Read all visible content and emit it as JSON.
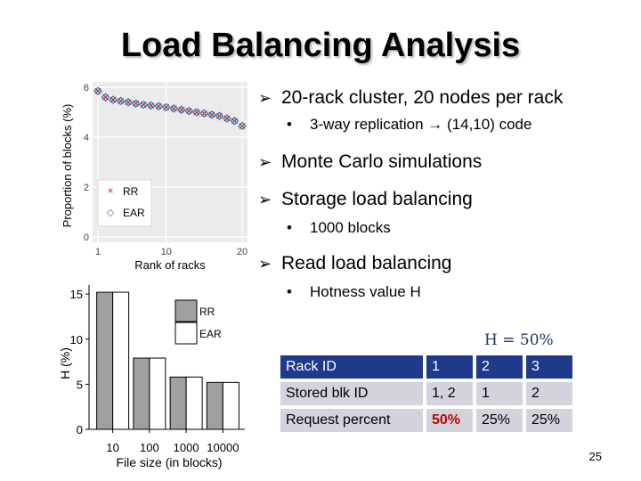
{
  "slide": {
    "title": "Load Balancing Analysis",
    "page_number": "25"
  },
  "bullets": {
    "b1": "20-rack cluster, 20 nodes per rack",
    "b1_sub": "3-way replication → (14,10) code",
    "b2": "Monte Carlo simulations",
    "b3": "Storage load balancing",
    "b3_sub": "1000 blocks",
    "b4": "Read load balancing",
    "b4_sub": "Hotness value H"
  },
  "hotness": {
    "label": "H = 50%"
  },
  "rack_table": {
    "rows": [
      {
        "label": "Rack ID",
        "values": [
          "1",
          "2",
          "3"
        ]
      },
      {
        "label": "Stored blk ID",
        "values": [
          "1, 2",
          "1",
          "2"
        ]
      },
      {
        "label": "Request percent",
        "values": [
          "50%",
          "25%",
          "25%"
        ]
      }
    ]
  },
  "chart_data": [
    {
      "type": "scatter",
      "title": "",
      "xlabel": "Rank of racks",
      "ylabel": "Proportion of blocks (%)",
      "xlim": [
        1,
        20
      ],
      "ylim": [
        0,
        6
      ],
      "x_ticks": [
        "1",
        "10",
        "20"
      ],
      "y_ticks": [
        "0",
        "2",
        "4",
        "6"
      ],
      "legend_position": "bottom-left",
      "series": [
        {
          "name": "RR",
          "marker": "x",
          "color": "#c0392b",
          "x": [
            1,
            2,
            3,
            4,
            5,
            6,
            7,
            8,
            9,
            10,
            11,
            12,
            13,
            14,
            15,
            16,
            17,
            18,
            19,
            20
          ],
          "y": [
            5.85,
            5.6,
            5.5,
            5.45,
            5.4,
            5.35,
            5.3,
            5.27,
            5.24,
            5.2,
            5.15,
            5.1,
            5.05,
            5.0,
            4.95,
            4.9,
            4.85,
            4.75,
            4.65,
            4.45
          ]
        },
        {
          "name": "EAR",
          "marker": "diamond",
          "color": "#2f6db5",
          "x": [
            1,
            2,
            3,
            4,
            5,
            6,
            7,
            8,
            9,
            10,
            11,
            12,
            13,
            14,
            15,
            16,
            17,
            18,
            19,
            20
          ],
          "y": [
            5.85,
            5.6,
            5.5,
            5.45,
            5.4,
            5.35,
            5.3,
            5.27,
            5.24,
            5.2,
            5.15,
            5.1,
            5.05,
            5.0,
            4.95,
            4.9,
            4.85,
            4.75,
            4.65,
            4.45
          ]
        }
      ]
    },
    {
      "type": "bar",
      "title": "",
      "xlabel": "File size (in blocks)",
      "ylabel": "H (%)",
      "ylim": [
        0,
        16
      ],
      "y_ticks": [
        "0",
        "5",
        "10",
        "15"
      ],
      "categories": [
        "10",
        "100",
        "1000",
        "10000"
      ],
      "legend_position": "top-right",
      "series": [
        {
          "name": "RR",
          "color": "#a0a0a0",
          "values": [
            15.2,
            7.9,
            5.8,
            5.2
          ]
        },
        {
          "name": "EAR",
          "color": "#ffffff",
          "values": [
            15.2,
            7.9,
            5.8,
            5.2
          ]
        }
      ]
    }
  ]
}
